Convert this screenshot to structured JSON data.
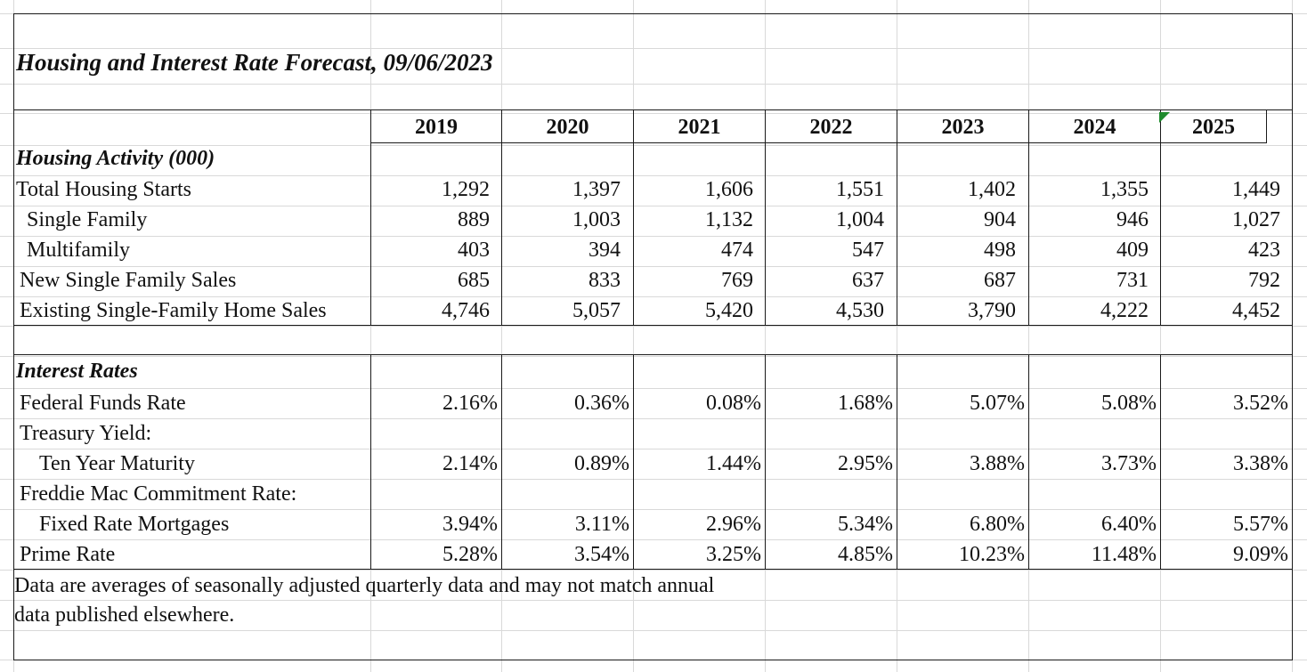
{
  "title": "Housing and Interest Rate Forecast, 09/06/2023",
  "years": [
    "2019",
    "2020",
    "2021",
    "2022",
    "2023",
    "2024",
    "2025"
  ],
  "housing": {
    "heading": "Housing Activity (000)",
    "rows": [
      {
        "label": "Total Housing Starts",
        "values": [
          "1,292",
          "1,397",
          "1,606",
          "1,551",
          "1,402",
          "1,355",
          "1,449"
        ]
      },
      {
        "label": "Single Family",
        "values": [
          "889",
          "1,003",
          "1,132",
          "1,004",
          "904",
          "946",
          "1,027"
        ]
      },
      {
        "label": "Multifamily",
        "values": [
          "403",
          "394",
          "474",
          "547",
          "498",
          "409",
          "423"
        ]
      },
      {
        "label": "New Single Family Sales",
        "values": [
          "685",
          "833",
          "769",
          "637",
          "687",
          "731",
          "792"
        ]
      },
      {
        "label": "Existing Single-Family Home Sales",
        "values": [
          "4,746",
          "5,057",
          "5,420",
          "4,530",
          "3,790",
          "4,222",
          "4,452"
        ]
      }
    ]
  },
  "interest": {
    "heading": "Interest Rates",
    "rows": [
      {
        "label": "Federal Funds Rate",
        "values": [
          "2.16%",
          "0.36%",
          "0.08%",
          "1.68%",
          "5.07%",
          "5.08%",
          "3.52%"
        ]
      },
      {
        "label": "Treasury Yield:",
        "values": []
      },
      {
        "label": "Ten Year Maturity",
        "values": [
          "2.14%",
          "0.89%",
          "1.44%",
          "2.95%",
          "3.88%",
          "3.73%",
          "3.38%"
        ]
      },
      {
        "label": "Freddie Mac Commitment Rate:",
        "values": []
      },
      {
        "label": "Fixed Rate Mortgages",
        "values": [
          "3.94%",
          "3.11%",
          "2.96%",
          "5.34%",
          "6.80%",
          "6.40%",
          "5.57%"
        ]
      },
      {
        "label": "Prime Rate",
        "values": [
          "5.28%",
          "3.54%",
          "3.25%",
          "4.85%",
          "10.23%",
          "11.48%",
          "9.09%"
        ]
      }
    ]
  },
  "footnote": {
    "line1": "Data are averages of seasonally adjusted quarterly data and may not match annual",
    "line2": "data published elsewhere."
  }
}
